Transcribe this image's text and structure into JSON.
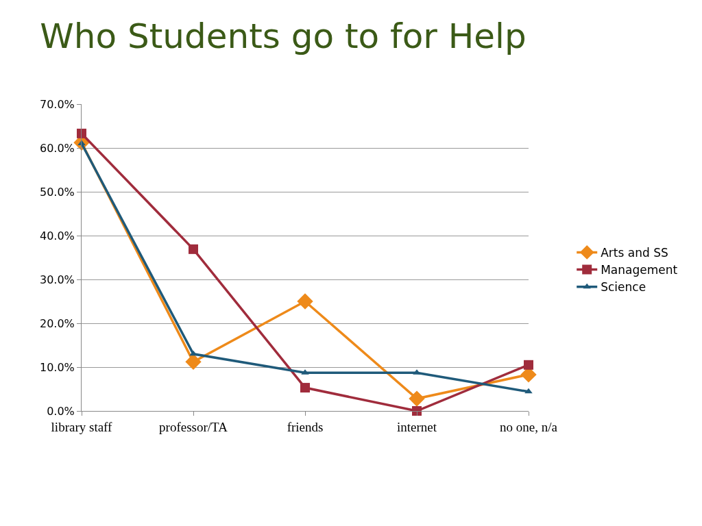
{
  "chart_data": {
    "type": "line",
    "title": "Who Students go to for Help",
    "categories": [
      "library staff",
      "professor/TA",
      "friends",
      "internet",
      "no one, n/a"
    ],
    "series": [
      {
        "name": "Arts and SS",
        "color": "#ee8a1a",
        "marker": "diamond",
        "values": [
          61.2,
          11.2,
          25.0,
          2.8,
          8.3
        ]
      },
      {
        "name": "Management",
        "color": "#a02c3c",
        "marker": "square",
        "values": [
          63.3,
          36.9,
          5.3,
          0.0,
          10.5
        ]
      },
      {
        "name": "Science",
        "color": "#1f5a7a",
        "marker": "triangle",
        "values": [
          61.0,
          13.0,
          8.7,
          8.7,
          4.4
        ]
      }
    ],
    "ylim": [
      0,
      70
    ],
    "yticks": [
      {
        "value": 0,
        "label": "0.0%"
      },
      {
        "value": 10,
        "label": "10.0%"
      },
      {
        "value": 20,
        "label": "20.0%"
      },
      {
        "value": 30,
        "label": "30.0%"
      },
      {
        "value": 40,
        "label": "40.0%"
      },
      {
        "value": 50,
        "label": "50.0%"
      },
      {
        "value": 60,
        "label": "60.0%"
      },
      {
        "value": 70,
        "label": "70.0%"
      }
    ],
    "grid": "y",
    "legend": "right",
    "line_style": "solid"
  }
}
